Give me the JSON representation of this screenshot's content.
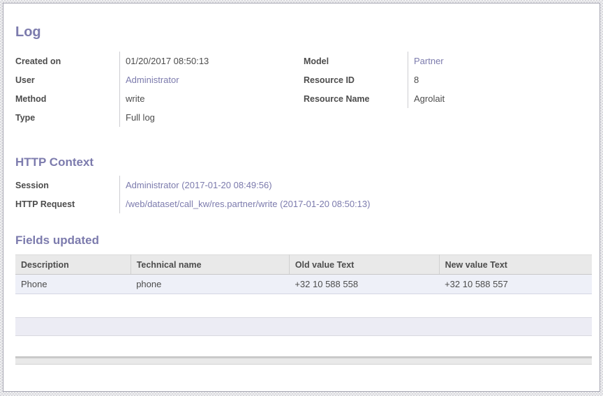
{
  "colors": {
    "heading": "#7c7bad",
    "link": "#7c7bad",
    "label_text": "#4c4c4c",
    "table_header_bg": "#e9e9e9",
    "table_row_bg": "#eef0f8"
  },
  "sections": {
    "log": {
      "heading": "Log",
      "left_fields": [
        {
          "label": "Created on",
          "value": "01/20/2017 08:50:13"
        },
        {
          "label": "User",
          "value": "Administrator"
        },
        {
          "label": "Method",
          "value": "write"
        },
        {
          "label": "Type",
          "value": "Full log"
        }
      ],
      "right_fields": [
        {
          "label": "Model",
          "value": "Partner"
        },
        {
          "label": "Resource ID",
          "value": "8"
        },
        {
          "label": "Resource Name",
          "value": "Agrolait"
        }
      ]
    },
    "http_context": {
      "heading": "HTTP Context",
      "fields": [
        {
          "label": "Session",
          "value": "Administrator (2017-01-20 08:49:56)"
        },
        {
          "label": "HTTP Request",
          "value": "/web/dataset/call_kw/res.partner/write (2017-01-20 08:50:13)"
        }
      ]
    },
    "fields_updated": {
      "heading": "Fields updated",
      "table": {
        "columns": [
          "Description",
          "Technical name",
          "Old value Text",
          "New value Text"
        ],
        "rows": [
          [
            "Phone",
            "phone",
            "+32 10 588 558",
            "+32 10 588 557"
          ]
        ]
      }
    }
  }
}
